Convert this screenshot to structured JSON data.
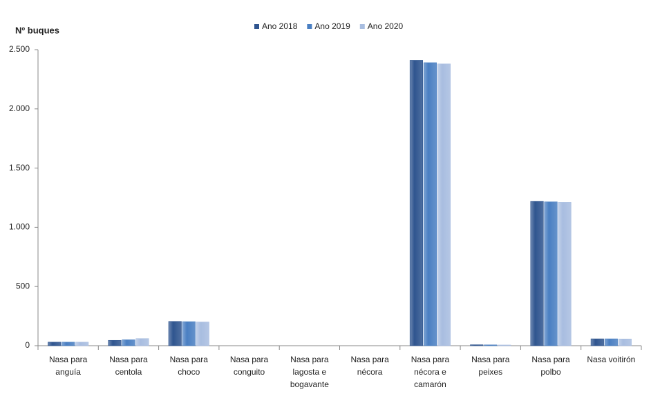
{
  "chart_data": {
    "type": "bar",
    "y_label": "Nº  buques",
    "categories": [
      "Nasa para anguía",
      "Nasa para centola",
      "Nasa para choco",
      "Nasa para conguito",
      "Nasa para lagosta e bogavante",
      "Nasa para nécora",
      "Nasa para nécora e camarón",
      "Nasa para peixes",
      "Nasa para polbo",
      "Nasa voitirón"
    ],
    "series": [
      {
        "name": "Ano 2018",
        "color": "#2f558f",
        "values": [
          30,
          45,
          205,
          0,
          0,
          0,
          2410,
          8,
          1220,
          58
        ]
      },
      {
        "name": "Ano 2019",
        "color": "#4a7fc2",
        "values": [
          30,
          50,
          203,
          0,
          0,
          0,
          2390,
          7,
          1215,
          58
        ]
      },
      {
        "name": "Ano 2020",
        "color": "#a8bde0",
        "values": [
          30,
          60,
          200,
          0,
          0,
          0,
          2380,
          6,
          1210,
          57
        ]
      }
    ],
    "ylim": [
      0,
      2500
    ],
    "yticks": [
      0,
      500,
      {
        "value": 1000,
        "label": "1.000"
      },
      {
        "value": 1500,
        "label": "1.500"
      },
      {
        "value": 2000,
        "label": "2.000"
      },
      {
        "value": 2500,
        "label": "2.500"
      }
    ],
    "legend": "top"
  }
}
